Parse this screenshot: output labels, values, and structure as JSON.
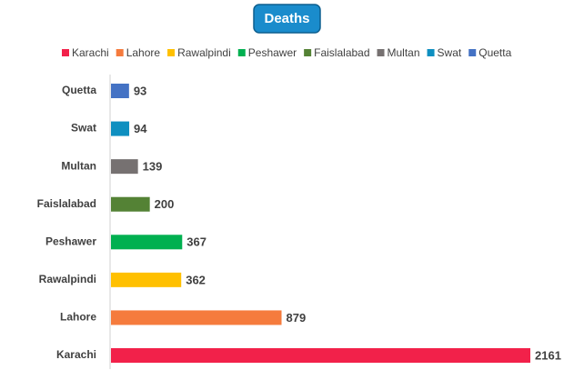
{
  "chart_data": {
    "type": "bar",
    "orientation": "horizontal",
    "title": "Deaths",
    "categories": [
      "Karachi",
      "Lahore",
      "Rawalpindi",
      "Peshawer",
      "Faislalabad",
      "Multan",
      "Swat",
      "Quetta"
    ],
    "values": [
      2161,
      879,
      362,
      367,
      200,
      139,
      94,
      93
    ],
    "colors": [
      "#f2214a",
      "#f57b3d",
      "#ffc000",
      "#00b050",
      "#548235",
      "#767171",
      "#0e8fc0",
      "#4472c4"
    ],
    "legend": "top"
  }
}
